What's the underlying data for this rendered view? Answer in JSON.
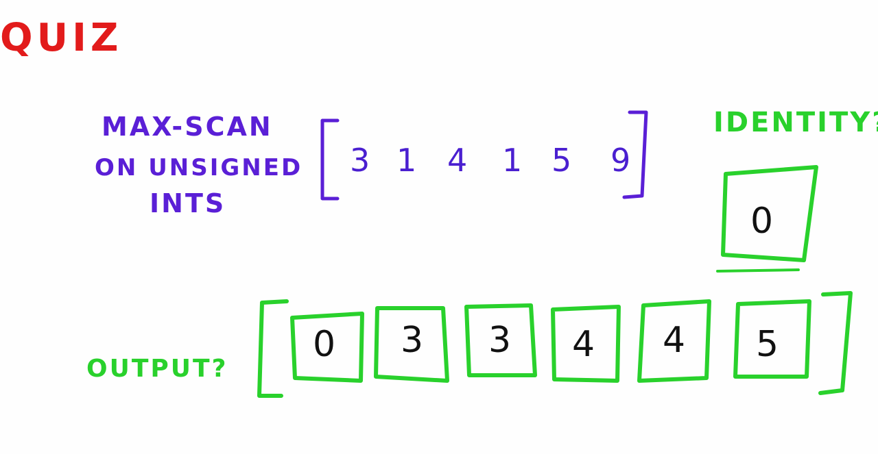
{
  "title": "QUIZ",
  "problem": {
    "line1": "MAX-SCAN",
    "line2": "ON UNSIGNED",
    "line3": "INTS"
  },
  "input_values": [
    "3",
    "1",
    "4",
    "1",
    "5",
    "9"
  ],
  "identity": {
    "label": "IDENTITY?",
    "value": "0"
  },
  "output": {
    "label": "OUTPUT?",
    "values": [
      "0",
      "3",
      "3",
      "4",
      "4",
      "5"
    ]
  },
  "colors": {
    "title": "#e21b1b",
    "problem": "#5a1fd6",
    "answer": "#29d12c",
    "ink": "#111111"
  }
}
